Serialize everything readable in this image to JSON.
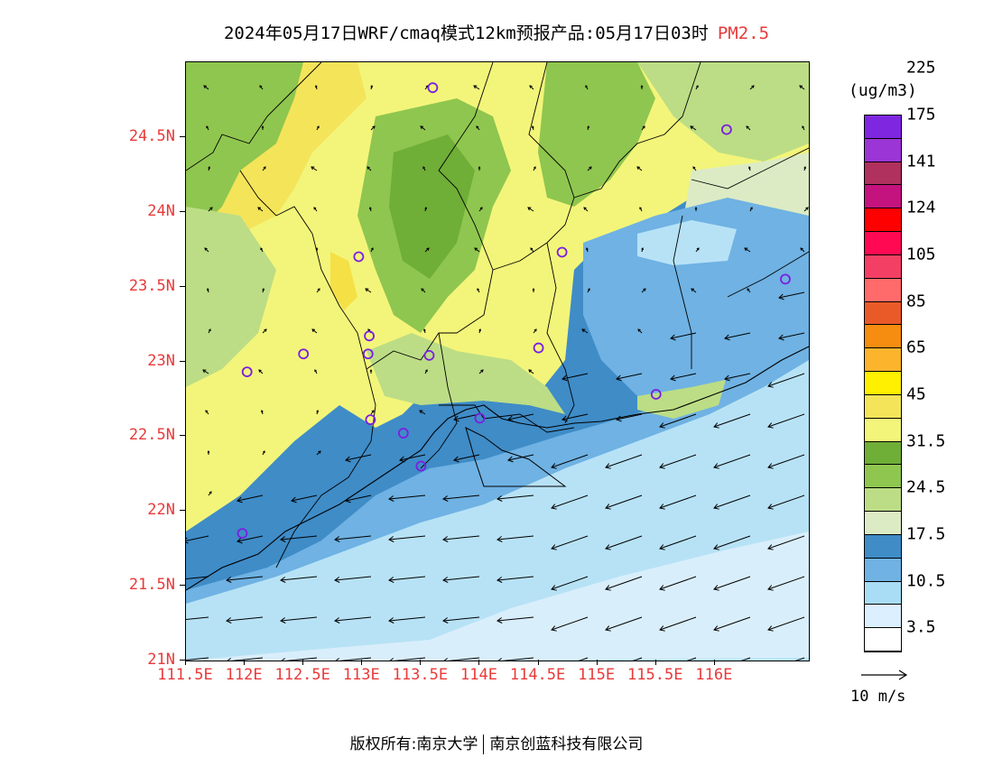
{
  "title": {
    "text": "2024年05月17日WRF/cmaq模式12km预报产品:05月17日03时",
    "pollutant": "PM2.5"
  },
  "axes": {
    "lat_labels": [
      "21N",
      "21.5N",
      "22N",
      "22.5N",
      "23N",
      "23.5N",
      "24N",
      "24.5N"
    ],
    "lon_labels": [
      "111.5E",
      "112E",
      "112.5E",
      "113E",
      "113.5E",
      "114E",
      "114.5E",
      "115E",
      "115.5E",
      "116E"
    ],
    "lat_values": [
      21,
      21.5,
      22,
      22.5,
      23,
      23.5,
      24,
      24.5
    ],
    "lon_values": [
      111.5,
      112,
      112.5,
      113,
      113.5,
      114,
      114.5,
      115,
      115.5,
      116
    ],
    "lon_range": [
      111.5,
      116.8
    ],
    "lat_range": [
      21,
      25
    ]
  },
  "colorbar": {
    "unit": "(ug/m3)",
    "labels": [
      "3.5",
      "10.5",
      "17.5",
      "24.5",
      "31.5",
      "45",
      "65",
      "85",
      "105",
      "124",
      "141",
      "175",
      "225"
    ],
    "colors_bottom_to_top": [
      "#ffffff",
      "#dcefff",
      "#a9dcf5",
      "#6fb2e3",
      "#3f8cc7",
      "#dcebc4",
      "#bcdd85",
      "#8fc64f",
      "#6fae37",
      "#f3f57a",
      "#f4e45a",
      "#ffef00",
      "#fbb42c",
      "#f68c10",
      "#ea5a28",
      "#ff6b6b",
      "#f43f64",
      "#ff0a52",
      "#ff0000",
      "#c4127e",
      "#b0305e",
      "#9b35d6",
      "#7f27e0"
    ]
  },
  "wind_reference": {
    "label": "10 m/s"
  },
  "stations": [
    {
      "lon": 112.97,
      "lat": 23.7
    },
    {
      "lon": 112.5,
      "lat": 23.05
    },
    {
      "lon": 112.02,
      "lat": 22.93
    },
    {
      "lon": 113.06,
      "lat": 23.17
    },
    {
      "lon": 113.05,
      "lat": 23.05
    },
    {
      "lon": 113.57,
      "lat": 23.04
    },
    {
      "lon": 113.07,
      "lat": 22.61
    },
    {
      "lon": 113.35,
      "lat": 22.52
    },
    {
      "lon": 113.5,
      "lat": 22.3
    },
    {
      "lon": 114.0,
      "lat": 22.62
    },
    {
      "lon": 114.5,
      "lat": 23.09
    },
    {
      "lon": 114.7,
      "lat": 23.73
    },
    {
      "lon": 113.6,
      "lat": 24.83
    },
    {
      "lon": 115.5,
      "lat": 22.78
    },
    {
      "lon": 116.1,
      "lat": 24.55
    },
    {
      "lon": 116.6,
      "lat": 23.55
    },
    {
      "lon": 111.98,
      "lat": 21.85
    }
  ],
  "footer": {
    "left": "版权所有:南京大学",
    "right": "南京创蓝科技有限公司"
  }
}
